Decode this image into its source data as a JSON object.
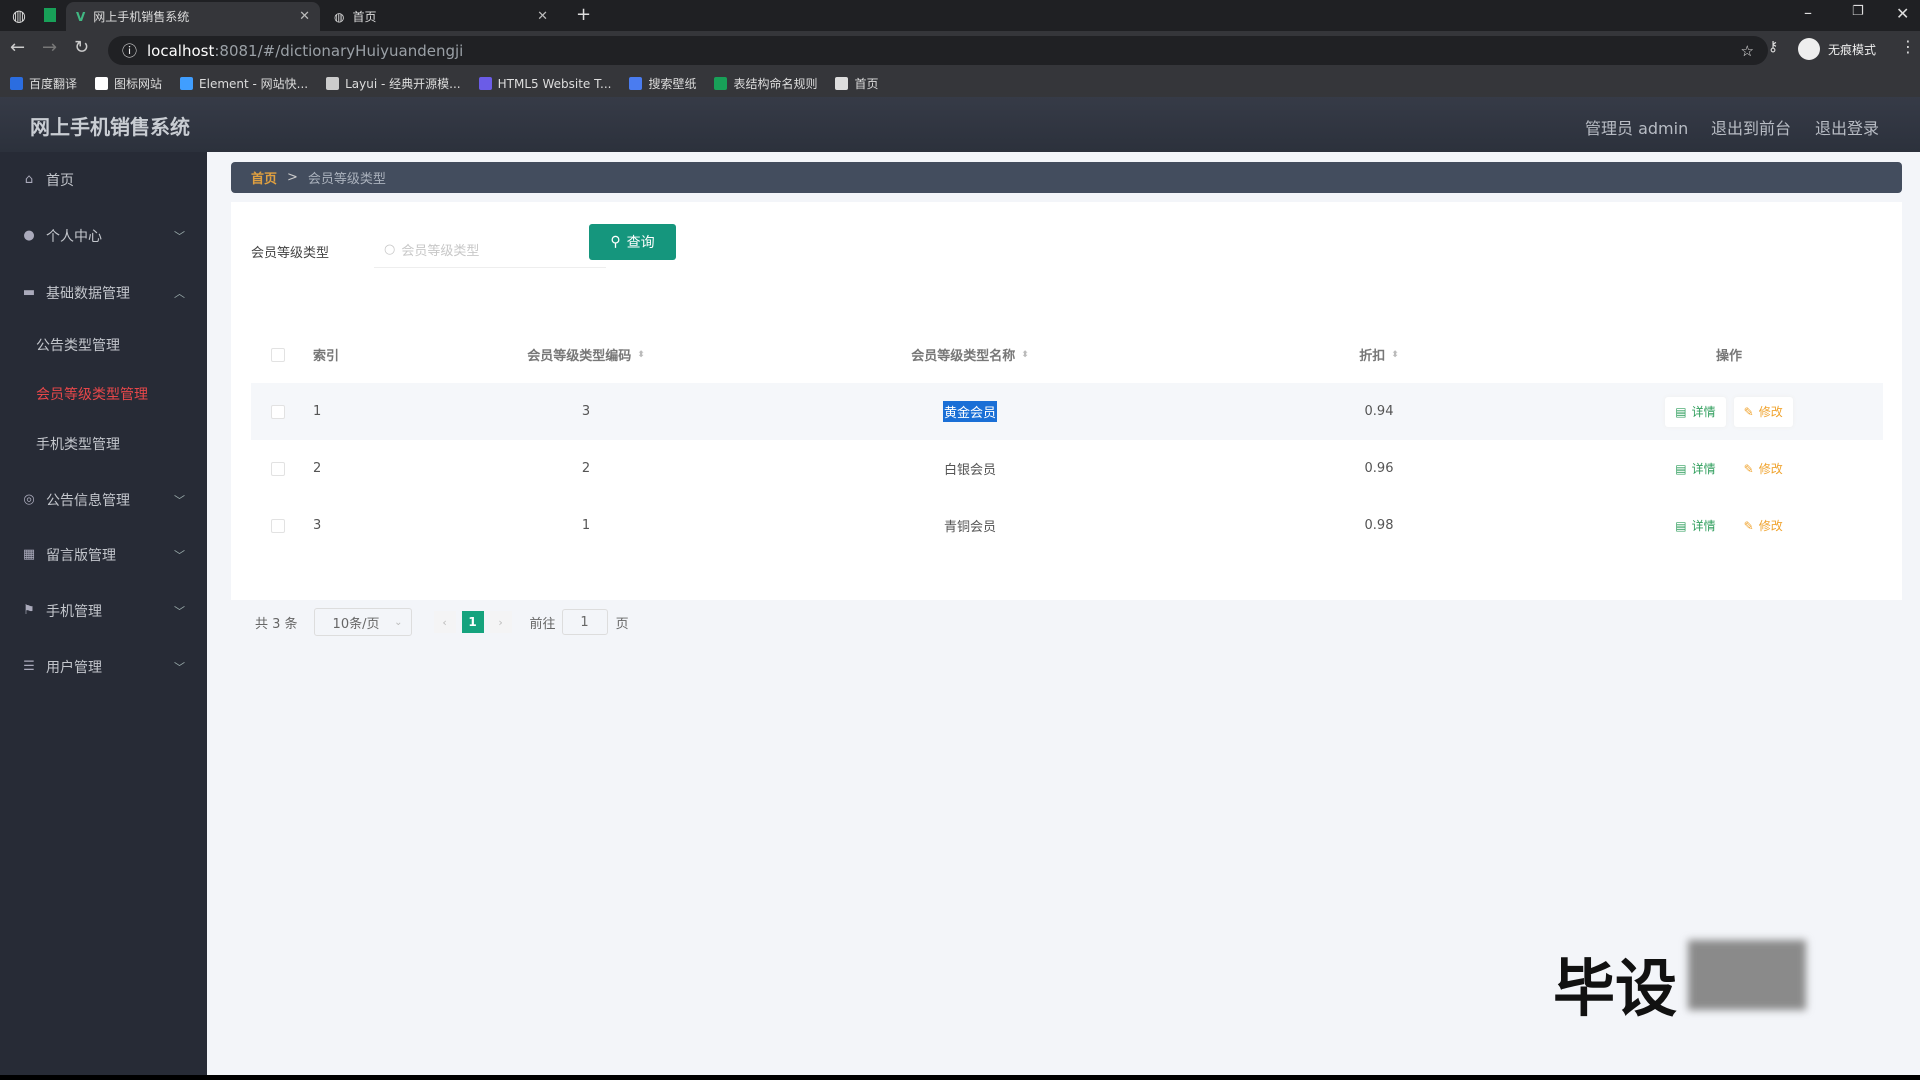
{
  "browser": {
    "tabs": [
      {
        "label": "网上手机销售系统",
        "active": true
      },
      {
        "label": "首页",
        "active": false
      }
    ],
    "url_host": "localhost",
    "url_path": ":8081/#/dictionaryHuiyuandengji",
    "profile": "无痕模式",
    "bookmarks": [
      {
        "label": "百度翻译",
        "color": "#2b6de0"
      },
      {
        "label": "图标网站",
        "color": "#ffffff"
      },
      {
        "label": "Element - 网站快...",
        "color": "#409eff"
      },
      {
        "label": "Layui - 经典开源模...",
        "color": "#cccccc"
      },
      {
        "label": "HTML5 Website T...",
        "color": "#6b5ce7"
      },
      {
        "label": "搜索壁纸",
        "color": "#4a7cf0"
      },
      {
        "label": "表结构命名规则",
        "color": "#18a058"
      },
      {
        "label": "首页",
        "color": "#dddddd"
      }
    ]
  },
  "header": {
    "title": "网上手机销售系统",
    "user": "管理员 admin",
    "front": "退出到前台",
    "logout": "退出登录"
  },
  "sidebar": {
    "items": [
      {
        "label": "首页",
        "icon": "home-icon",
        "chev": ""
      },
      {
        "label": "个人中心",
        "icon": "user-icon",
        "chev": "﹀"
      },
      {
        "label": "基础数据管理",
        "icon": "briefcase-icon",
        "chev": "︿"
      },
      {
        "label": "公告类型管理",
        "sub": true
      },
      {
        "label": "会员等级类型管理",
        "sub": true,
        "active": true
      },
      {
        "label": "手机类型管理",
        "sub": true
      },
      {
        "label": "公告信息管理",
        "icon": "circle-icon",
        "chev": "﹀"
      },
      {
        "label": "留言版管理",
        "icon": "grid-icon",
        "chev": "﹀"
      },
      {
        "label": "手机管理",
        "icon": "flag-icon",
        "chev": "﹀"
      },
      {
        "label": "用户管理",
        "icon": "sliders-icon",
        "chev": "﹀"
      }
    ]
  },
  "breadcrumb": {
    "home": "首页",
    "sep": ">",
    "current": "会员等级类型"
  },
  "search": {
    "label": "会员等级类型",
    "placeholder": "会员等级类型",
    "button": "查询"
  },
  "table": {
    "columns": [
      "索引",
      "会员等级类型编码",
      "会员等级类型名称",
      "折扣",
      "操作"
    ],
    "rows": [
      {
        "index": "1",
        "code": "3",
        "name": "黄金会员",
        "discount": "0.94"
      },
      {
        "index": "2",
        "code": "2",
        "name": "白银会员",
        "discount": "0.96"
      },
      {
        "index": "3",
        "code": "1",
        "name": "青铜会员",
        "discount": "0.98"
      }
    ],
    "detail": "详情",
    "edit": "修改"
  },
  "pagination": {
    "total": "共 3 条",
    "page_size": "10条/页",
    "current": "1",
    "goto": "前往",
    "goto_value": "1",
    "page_unit": "页"
  },
  "watermark": "毕设",
  "colors": {
    "accent": "#15967d",
    "active_menu": "#e8474a",
    "detail": "#2f9e5c",
    "edit": "#f0a430"
  }
}
